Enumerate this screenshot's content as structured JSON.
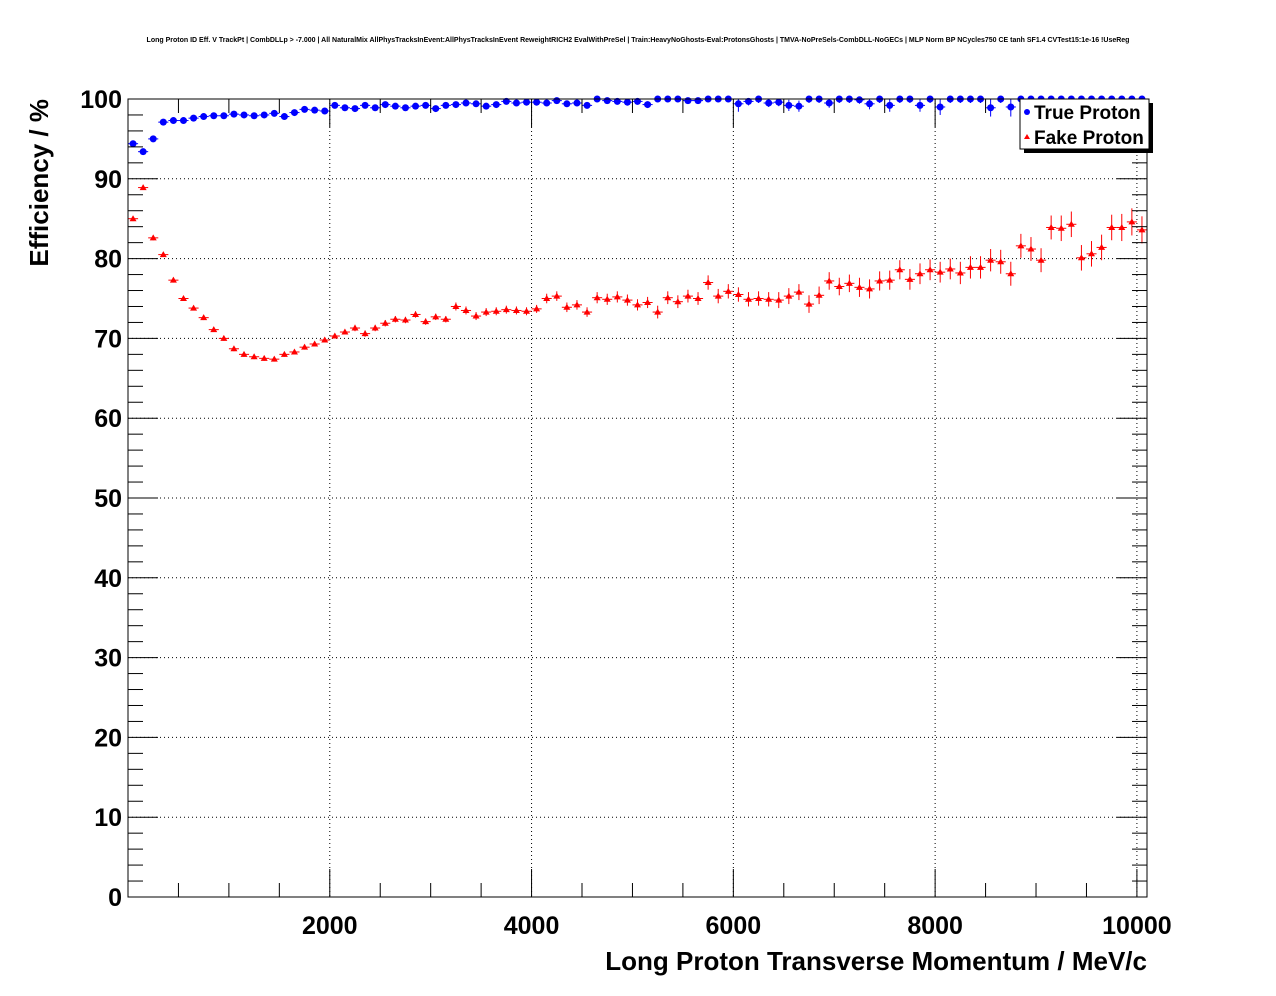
{
  "chart_data": {
    "type": "scatter",
    "title": "Long Proton ID Eff. V TrackPt | CombDLLp > -7.000 | All NaturalMix AllPhysTracksInEvent:AllPhysTracksInEvent ReweightRICH2 EvalWithPreSel | Train:HeavyNoGhosts-Eval:ProtonsGhosts | TMVA-NoPreSels-CombDLL-NoGECs | MLP Norm BP NCycles750 CE tanh SF1.4 CVTest15:1e-16 !UseReg",
    "xlabel": "Long Proton Transverse Momentum / MeV/c",
    "ylabel": "Efficiency / %",
    "xlim": [
      0,
      10100
    ],
    "ylim": [
      0,
      100
    ],
    "x_ticks": [
      "2000",
      "4000",
      "6000",
      "8000",
      "10000"
    ],
    "y_ticks": [
      "0",
      "10",
      "20",
      "30",
      "40",
      "50",
      "60",
      "70",
      "80",
      "90",
      "100"
    ],
    "grid": true,
    "legend_position": "top-right",
    "x": [
      50,
      150,
      250,
      350,
      450,
      550,
      650,
      750,
      850,
      950,
      1050,
      1150,
      1250,
      1350,
      1450,
      1550,
      1650,
      1750,
      1850,
      1950,
      2050,
      2150,
      2250,
      2350,
      2450,
      2550,
      2650,
      2750,
      2850,
      2950,
      3050,
      3150,
      3250,
      3350,
      3450,
      3550,
      3650,
      3750,
      3850,
      3950,
      4050,
      4150,
      4250,
      4350,
      4450,
      4550,
      4650,
      4750,
      4850,
      4950,
      5050,
      5150,
      5250,
      5350,
      5450,
      5550,
      5650,
      5750,
      5850,
      5950,
      6050,
      6150,
      6250,
      6350,
      6450,
      6550,
      6650,
      6750,
      6850,
      6950,
      7050,
      7150,
      7250,
      7350,
      7450,
      7550,
      7650,
      7750,
      7850,
      7950,
      8050,
      8150,
      8250,
      8350,
      8450,
      8550,
      8650,
      8750,
      8850,
      8950,
      9050,
      9150,
      9250,
      9350,
      9450,
      9550,
      9650,
      9750,
      9850,
      9950,
      10050
    ],
    "series": [
      {
        "name": "True Proton",
        "color": "#0000ff",
        "marker": "circle",
        "values": [
          94.4,
          93.4,
          95.0,
          97.1,
          97.3,
          97.3,
          97.6,
          97.8,
          97.9,
          97.9,
          98.1,
          98.0,
          97.9,
          98.0,
          98.2,
          97.8,
          98.3,
          98.7,
          98.6,
          98.5,
          99.2,
          98.9,
          98.8,
          99.2,
          98.9,
          99.3,
          99.1,
          98.9,
          99.1,
          99.2,
          98.8,
          99.2,
          99.3,
          99.5,
          99.4,
          99.1,
          99.3,
          99.7,
          99.5,
          99.6,
          99.6,
          99.5,
          99.8,
          99.4,
          99.5,
          99.2,
          100.0,
          99.8,
          99.7,
          99.6,
          99.7,
          99.3,
          100.0,
          100.0,
          100.0,
          99.8,
          99.8,
          100.0,
          100.0,
          100.0,
          99.4,
          99.7,
          100.0,
          99.5,
          99.6,
          99.2,
          99.1,
          100.0,
          100.0,
          99.5,
          100.0,
          100.0,
          99.9,
          99.4,
          100.0,
          99.2,
          100.0,
          100.0,
          99.2,
          100.0,
          99.0,
          100.0,
          100.0,
          100.0,
          100.0,
          98.9,
          100.0,
          99.0,
          100.0,
          100.0,
          100.0,
          100.0,
          100.0,
          100.0,
          100.0,
          100.0,
          100.0,
          100.0,
          100.0,
          100.0,
          100.0
        ],
        "errors": [
          0.4,
          0.4,
          0.35,
          0.3,
          0.3,
          0.3,
          0.3,
          0.3,
          0.3,
          0.3,
          0.3,
          0.3,
          0.3,
          0.3,
          0.3,
          0.3,
          0.3,
          0.3,
          0.3,
          0.3,
          0.3,
          0.3,
          0.3,
          0.3,
          0.3,
          0.3,
          0.3,
          0.3,
          0.3,
          0.3,
          0.3,
          0.3,
          0.3,
          0.3,
          0.3,
          0.3,
          0.3,
          0.3,
          0.3,
          0.3,
          0.3,
          0.3,
          0.3,
          0.4,
          0.4,
          0.4,
          0.4,
          0.4,
          0.4,
          0.4,
          0.4,
          0.4,
          0.4,
          0.4,
          0.4,
          0.4,
          0.4,
          0.4,
          0.4,
          0.4,
          1.0,
          0.5,
          0.5,
          0.5,
          0.5,
          0.7,
          0.7,
          0.5,
          0.5,
          0.6,
          0.5,
          0.5,
          0.5,
          0.7,
          0.5,
          0.8,
          0.5,
          0.5,
          0.8,
          0.5,
          1.0,
          0.5,
          0.5,
          0.5,
          0.5,
          1.1,
          0.5,
          1.2,
          0.5,
          0.5,
          0.5,
          0.5,
          0.5,
          0.5,
          0.5,
          0.5,
          0.5,
          0.5,
          0.5,
          0.5,
          0.5
        ]
      },
      {
        "name": "Fake Proton",
        "color": "#ff0000",
        "marker": "triangle",
        "values": [
          85.0,
          88.9,
          82.6,
          80.5,
          77.3,
          75.0,
          73.8,
          72.6,
          71.1,
          70.0,
          68.7,
          68.0,
          67.7,
          67.5,
          67.4,
          68.0,
          68.3,
          68.9,
          69.3,
          69.8,
          70.3,
          70.8,
          71.3,
          70.6,
          71.3,
          71.9,
          72.4,
          72.3,
          73.0,
          72.1,
          72.7,
          72.4,
          74.0,
          73.5,
          72.8,
          73.3,
          73.4,
          73.6,
          73.5,
          73.4,
          73.7,
          75.0,
          75.3,
          73.9,
          74.2,
          73.3,
          75.1,
          74.9,
          75.2,
          74.8,
          74.2,
          74.5,
          73.3,
          75.1,
          74.6,
          75.3,
          75.0,
          77.0,
          75.3,
          75.9,
          75.5,
          74.9,
          75.0,
          74.9,
          74.8,
          75.3,
          75.8,
          74.3,
          75.4,
          77.2,
          76.5,
          76.9,
          76.4,
          76.2,
          77.2,
          77.3,
          78.6,
          77.4,
          78.1,
          78.6,
          78.3,
          78.7,
          78.2,
          78.9,
          78.9,
          79.8,
          79.6,
          78.1,
          81.6,
          81.2,
          79.8,
          83.9,
          83.8,
          84.3,
          80.1,
          80.6,
          81.4,
          83.9,
          83.9,
          84.6,
          83.6
        ],
        "errors": [
          0.3,
          0.3,
          0.3,
          0.3,
          0.3,
          0.3,
          0.3,
          0.3,
          0.3,
          0.3,
          0.3,
          0.3,
          0.3,
          0.3,
          0.3,
          0.3,
          0.3,
          0.3,
          0.3,
          0.3,
          0.3,
          0.3,
          0.4,
          0.4,
          0.4,
          0.4,
          0.4,
          0.4,
          0.4,
          0.4,
          0.4,
          0.4,
          0.5,
          0.5,
          0.5,
          0.5,
          0.5,
          0.5,
          0.5,
          0.5,
          0.5,
          0.6,
          0.6,
          0.6,
          0.6,
          0.6,
          0.7,
          0.7,
          0.7,
          0.7,
          0.7,
          0.7,
          0.8,
          0.8,
          0.8,
          0.8,
          0.8,
          0.9,
          0.9,
          0.9,
          0.9,
          0.9,
          0.9,
          0.9,
          1.0,
          1.0,
          1.0,
          1.1,
          1.1,
          1.1,
          1.1,
          1.1,
          1.2,
          1.2,
          1.2,
          1.2,
          1.2,
          1.3,
          1.3,
          1.3,
          1.3,
          1.3,
          1.4,
          1.4,
          1.4,
          1.4,
          1.5,
          1.5,
          1.5,
          1.5,
          1.5,
          1.5,
          1.6,
          1.6,
          1.6,
          1.6,
          1.6,
          1.6,
          1.7,
          1.7,
          1.7
        ]
      }
    ]
  }
}
